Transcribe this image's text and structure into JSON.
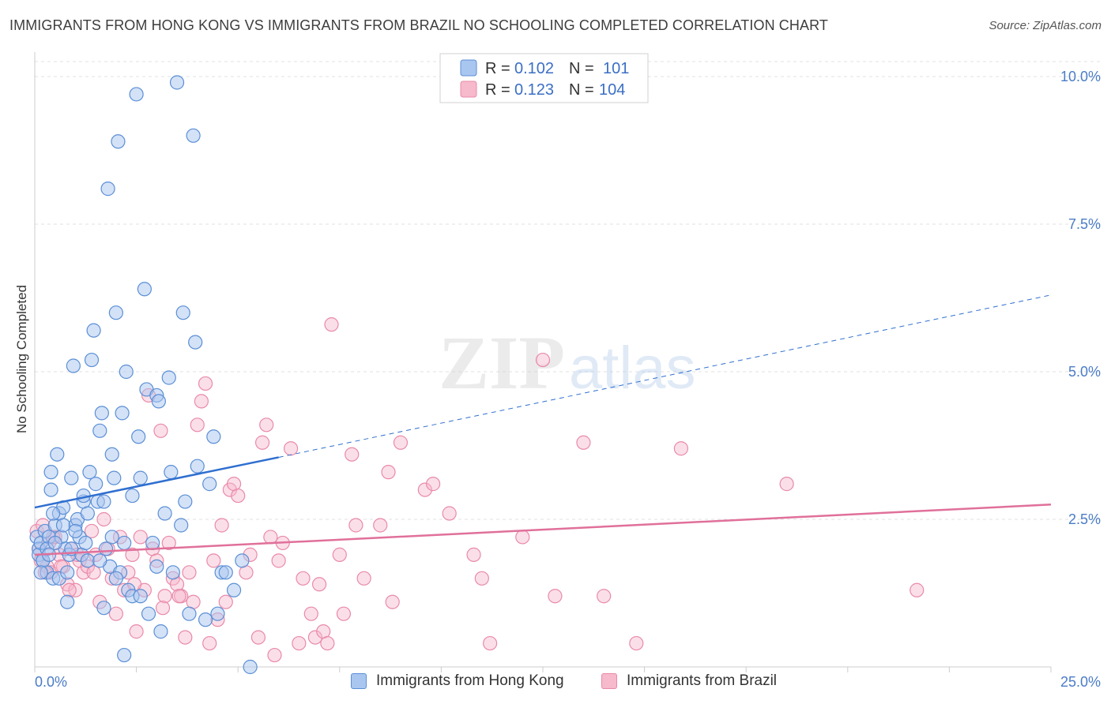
{
  "title": "IMMIGRANTS FROM HONG KONG VS IMMIGRANTS FROM BRAZIL NO SCHOOLING COMPLETED CORRELATION CHART",
  "source": "Source: ZipAtlas.com",
  "watermark": {
    "zip": "ZIP",
    "atlas": "atlas"
  },
  "colors": {
    "blue_fill": "#a9c6f0",
    "blue_stroke": "#5b8fd6",
    "blue_line": "#2f6fd0",
    "pink_fill": "#f7b9cc",
    "pink_stroke": "#e98aa9",
    "pink_line": "#e0709a"
  },
  "legend": {
    "rows": [
      {
        "r_label": "R = ",
        "r_value": "0.102",
        "n_label": "N = ",
        "n_value": "101"
      },
      {
        "r_label": "R = ",
        "r_value": "0.123",
        "n_label": "N = ",
        "n_value": "104"
      }
    ]
  },
  "bottom_legend": {
    "hk": "Immigrants from Hong Kong",
    "brazil": "Immigrants from Brazil"
  },
  "chart_data": {
    "type": "scatter",
    "title": "IMMIGRANTS FROM HONG KONG VS IMMIGRANTS FROM BRAZIL NO SCHOOLING COMPLETED CORRELATION CHART",
    "xlabel": "",
    "ylabel": "No Schooling Completed",
    "xlim": [
      0,
      25
    ],
    "ylim": [
      0,
      10
    ],
    "x_tick_labels": [
      "0.0%",
      "25.0%"
    ],
    "y_ticks": [
      2.5,
      5.0,
      7.5,
      10.0
    ],
    "y_tick_labels": [
      "2.5%",
      "5.0%",
      "7.5%",
      "10.0%"
    ],
    "grid": true,
    "legend_position": "top-center",
    "series": [
      {
        "name": "Immigrants from Hong Kong",
        "color": "#a9c6f0",
        "R": 0.102,
        "N": 101,
        "trend": {
          "x0": 0,
          "y0": 2.7,
          "x1": 6,
          "y1": 3.55,
          "dashed_to_x": 25,
          "dashed_to_y": 6.3
        },
        "points": [
          [
            0.05,
            2.2
          ],
          [
            0.1,
            2.0
          ],
          [
            0.1,
            1.9
          ],
          [
            0.15,
            2.1
          ],
          [
            0.2,
            1.8
          ],
          [
            0.25,
            2.3
          ],
          [
            0.3,
            1.6
          ],
          [
            0.35,
            2.2
          ],
          [
            0.4,
            3.0
          ],
          [
            0.4,
            3.3
          ],
          [
            0.45,
            1.5
          ],
          [
            0.5,
            2.4
          ],
          [
            0.55,
            3.6
          ],
          [
            0.6,
            2.6
          ],
          [
            0.65,
            2.2
          ],
          [
            0.7,
            2.7
          ],
          [
            0.75,
            2.0
          ],
          [
            0.8,
            1.1
          ],
          [
            0.85,
            1.9
          ],
          [
            0.9,
            3.2
          ],
          [
            0.95,
            5.1
          ],
          [
            1.0,
            2.4
          ],
          [
            1.05,
            2.5
          ],
          [
            1.1,
            2.2
          ],
          [
            1.15,
            1.9
          ],
          [
            1.2,
            2.8
          ],
          [
            1.25,
            2.1
          ],
          [
            1.3,
            2.6
          ],
          [
            1.35,
            3.3
          ],
          [
            1.4,
            5.2
          ],
          [
            1.45,
            5.7
          ],
          [
            1.5,
            3.1
          ],
          [
            1.55,
            2.8
          ],
          [
            1.6,
            4.0
          ],
          [
            1.65,
            4.3
          ],
          [
            1.7,
            1.0
          ],
          [
            1.75,
            2.0
          ],
          [
            1.8,
            8.1
          ],
          [
            1.85,
            1.7
          ],
          [
            1.9,
            3.6
          ],
          [
            1.95,
            3.2
          ],
          [
            2.0,
            6.0
          ],
          [
            2.05,
            8.9
          ],
          [
            2.1,
            1.6
          ],
          [
            2.15,
            4.3
          ],
          [
            2.2,
            0.2
          ],
          [
            2.25,
            5.0
          ],
          [
            2.3,
            1.3
          ],
          [
            2.4,
            2.9
          ],
          [
            2.5,
            9.7
          ],
          [
            2.55,
            3.9
          ],
          [
            2.6,
            3.2
          ],
          [
            2.7,
            6.4
          ],
          [
            2.75,
            4.7
          ],
          [
            2.8,
            0.9
          ],
          [
            2.9,
            2.1
          ],
          [
            3.0,
            4.6
          ],
          [
            3.05,
            4.5
          ],
          [
            3.1,
            0.6
          ],
          [
            3.2,
            2.6
          ],
          [
            3.3,
            4.9
          ],
          [
            3.35,
            3.3
          ],
          [
            3.4,
            1.6
          ],
          [
            3.5,
            9.9
          ],
          [
            3.6,
            2.4
          ],
          [
            3.65,
            6.0
          ],
          [
            3.7,
            2.8
          ],
          [
            3.8,
            0.9
          ],
          [
            3.9,
            9.0
          ],
          [
            3.95,
            5.5
          ],
          [
            4.0,
            3.4
          ],
          [
            4.2,
            0.8
          ],
          [
            4.3,
            3.1
          ],
          [
            4.4,
            3.9
          ],
          [
            4.5,
            0.9
          ],
          [
            4.6,
            1.6
          ],
          [
            4.7,
            1.6
          ],
          [
            4.9,
            1.3
          ],
          [
            5.1,
            1.8
          ],
          [
            5.3,
            0.0
          ],
          [
            0.2,
            1.8
          ],
          [
            0.3,
            2.0
          ],
          [
            0.6,
            1.5
          ],
          [
            0.8,
            1.6
          ],
          [
            1.0,
            2.3
          ],
          [
            1.3,
            1.8
          ],
          [
            1.7,
            2.8
          ],
          [
            2.0,
            1.5
          ],
          [
            2.4,
            1.2
          ],
          [
            2.6,
            1.2
          ],
          [
            3.0,
            1.7
          ],
          [
            0.15,
            1.6
          ],
          [
            0.5,
            2.1
          ],
          [
            0.9,
            2.0
          ],
          [
            1.6,
            1.8
          ],
          [
            0.35,
            1.9
          ],
          [
            2.2,
            2.1
          ],
          [
            1.2,
            2.9
          ],
          [
            0.7,
            2.4
          ],
          [
            1.9,
            2.2
          ],
          [
            0.45,
            2.6
          ]
        ]
      },
      {
        "name": "Immigrants from Brazil",
        "color": "#f7b9cc",
        "R": 0.123,
        "N": 104,
        "trend": {
          "x0": 0,
          "y0": 1.9,
          "x1": 25,
          "y1": 2.75
        },
        "points": [
          [
            0.05,
            2.3
          ],
          [
            0.1,
            2.0
          ],
          [
            0.15,
            1.8
          ],
          [
            0.2,
            2.4
          ],
          [
            0.3,
            1.7
          ],
          [
            0.35,
            2.1
          ],
          [
            0.4,
            1.6
          ],
          [
            0.5,
            2.2
          ],
          [
            0.6,
            1.9
          ],
          [
            0.7,
            1.7
          ],
          [
            0.8,
            1.4
          ],
          [
            0.9,
            2.0
          ],
          [
            1.0,
            1.3
          ],
          [
            1.1,
            1.8
          ],
          [
            1.2,
            1.6
          ],
          [
            1.3,
            1.7
          ],
          [
            1.4,
            2.3
          ],
          [
            1.5,
            1.9
          ],
          [
            1.6,
            1.1
          ],
          [
            1.7,
            2.5
          ],
          [
            1.8,
            2.0
          ],
          [
            1.9,
            1.5
          ],
          [
            2.0,
            0.9
          ],
          [
            2.1,
            2.2
          ],
          [
            2.2,
            1.3
          ],
          [
            2.3,
            1.6
          ],
          [
            2.4,
            1.9
          ],
          [
            2.5,
            0.6
          ],
          [
            2.6,
            2.2
          ],
          [
            2.7,
            1.3
          ],
          [
            2.8,
            4.6
          ],
          [
            2.9,
            2.0
          ],
          [
            3.0,
            1.8
          ],
          [
            3.1,
            4.0
          ],
          [
            3.2,
            1.2
          ],
          [
            3.3,
            2.1
          ],
          [
            3.4,
            1.5
          ],
          [
            3.5,
            1.4
          ],
          [
            3.6,
            1.2
          ],
          [
            3.7,
            0.5
          ],
          [
            3.8,
            1.6
          ],
          [
            3.9,
            1.1
          ],
          [
            4.0,
            4.1
          ],
          [
            4.1,
            4.5
          ],
          [
            4.2,
            4.8
          ],
          [
            4.3,
            0.4
          ],
          [
            4.4,
            1.8
          ],
          [
            4.5,
            0.8
          ],
          [
            4.6,
            2.4
          ],
          [
            4.7,
            1.1
          ],
          [
            4.8,
            3.0
          ],
          [
            4.9,
            3.1
          ],
          [
            5.0,
            2.9
          ],
          [
            5.2,
            1.6
          ],
          [
            5.3,
            1.9
          ],
          [
            5.5,
            0.5
          ],
          [
            5.6,
            3.8
          ],
          [
            5.7,
            4.1
          ],
          [
            5.8,
            2.2
          ],
          [
            5.9,
            0.2
          ],
          [
            6.0,
            1.8
          ],
          [
            6.1,
            2.1
          ],
          [
            6.3,
            3.7
          ],
          [
            6.5,
            0.4
          ],
          [
            6.6,
            1.5
          ],
          [
            6.8,
            0.9
          ],
          [
            6.9,
            0.5
          ],
          [
            7.0,
            1.4
          ],
          [
            7.1,
            0.6
          ],
          [
            7.2,
            0.4
          ],
          [
            7.3,
            5.8
          ],
          [
            7.5,
            1.9
          ],
          [
            7.6,
            0.9
          ],
          [
            7.8,
            3.6
          ],
          [
            7.9,
            2.4
          ],
          [
            8.1,
            1.5
          ],
          [
            8.5,
            2.4
          ],
          [
            8.7,
            3.3
          ],
          [
            8.8,
            1.1
          ],
          [
            9.0,
            3.8
          ],
          [
            9.6,
            3.0
          ],
          [
            9.8,
            3.1
          ],
          [
            10.2,
            2.6
          ],
          [
            10.8,
            1.9
          ],
          [
            11.0,
            1.5
          ],
          [
            11.2,
            0.4
          ],
          [
            12.0,
            2.2
          ],
          [
            12.5,
            5.2
          ],
          [
            12.8,
            1.2
          ],
          [
            13.5,
            3.8
          ],
          [
            14.0,
            1.2
          ],
          [
            14.8,
            0.4
          ],
          [
            15.9,
            3.7
          ],
          [
            18.5,
            3.1
          ],
          [
            21.7,
            1.3
          ],
          [
            0.25,
            1.6
          ],
          [
            0.45,
            2.2
          ],
          [
            0.65,
            1.7
          ],
          [
            0.85,
            1.3
          ],
          [
            1.05,
            1.9
          ],
          [
            1.45,
            1.6
          ],
          [
            2.45,
            1.4
          ],
          [
            3.15,
            1.0
          ],
          [
            3.55,
            1.2
          ]
        ]
      }
    ]
  }
}
